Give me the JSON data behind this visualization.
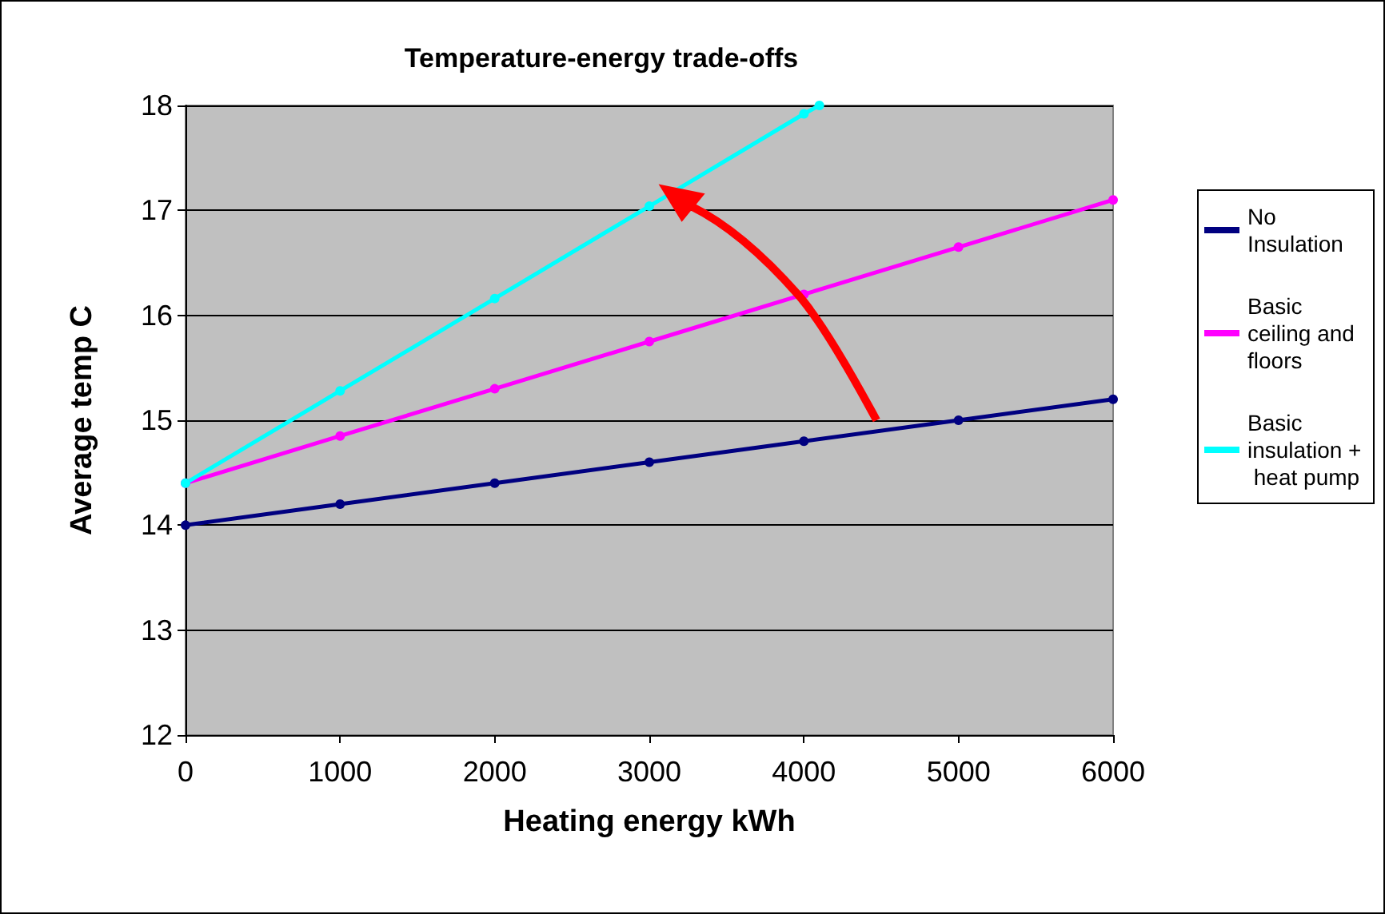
{
  "chart_data": {
    "type": "line",
    "title": "Temperature-energy trade-offs",
    "xlabel": "Heating energy kWh",
    "ylabel": "Average temp C",
    "x": [
      0,
      1000,
      2000,
      3000,
      4000,
      5000,
      6000
    ],
    "series": [
      {
        "name": "No Insulation",
        "color": "#000080",
        "values": [
          14.0,
          14.2,
          14.4,
          14.6,
          14.8,
          15.0,
          15.2
        ]
      },
      {
        "name": "Basic ceiling and floors",
        "color": "#ff00ff",
        "values": [
          14.4,
          14.85,
          15.3,
          15.75,
          16.2,
          16.65,
          17.1
        ]
      },
      {
        "name": "Basic insulation + heat pump",
        "color": "#00ffff",
        "x": [
          0,
          1000,
          2000,
          3000,
          4000,
          4100
        ],
        "values": [
          14.4,
          15.28,
          16.16,
          17.04,
          17.92,
          18.0
        ]
      }
    ],
    "xlim": [
      0,
      6000
    ],
    "xticks": [
      0,
      1000,
      2000,
      3000,
      4000,
      5000,
      6000
    ],
    "ylim": [
      12,
      18
    ],
    "yticks": [
      12,
      13,
      14,
      15,
      16,
      17,
      18
    ],
    "grid": "y",
    "legend": "right",
    "marker": "circle",
    "line_style": "solid"
  }
}
